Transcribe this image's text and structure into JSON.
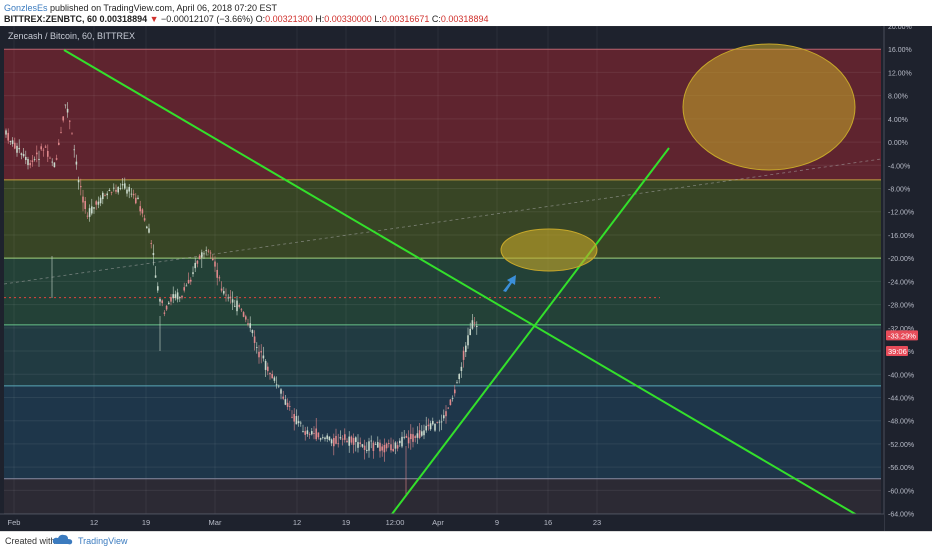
{
  "header": {
    "user": "GonzlesEs",
    "published": " published on TradingView.com, April 06, 2018 07:20 EST",
    "symbol": "BITTREX:ZENBTC, 60",
    "last_price": "0.00318894",
    "change_marker": "▼",
    "change": "−0.00012107 (−3.66%)",
    "ohlc": {
      "o_label": "O:",
      "o": "0.00321300",
      "h_label": "H:",
      "h": "0.00330000",
      "l_label": "L:",
      "l": "0.00316671",
      "c_label": "C:",
      "c": "0.00318894"
    }
  },
  "footer": {
    "created_with": "Created with",
    "brand": "TradingView"
  },
  "colors": {
    "background": "#1e222d",
    "zone_top": "#6b2430",
    "zone_mid_upper": "#3d4b25",
    "zone_mid": "#25463a",
    "zone_mid_lower": "#224046",
    "zone_low": "#1f3a50",
    "zone_bottom": "#2f2b36",
    "trendline": "#33e02b",
    "ellipse": "#c7a82a",
    "candle_up": "#c9d9cc",
    "candle_down": "#e0888c",
    "arrow": "#3b8fd9",
    "price_tag": "#e74c5a"
  },
  "chart_data": {
    "type": "candlestick",
    "title": "Zencash / Bitcoin, 60, BITTREX",
    "x_tick_labels": [
      "Feb",
      "12",
      "19",
      "Mar",
      "12",
      "19",
      "12:00",
      "Apr",
      "9",
      "16",
      "23"
    ],
    "y_axis": {
      "unit": "%",
      "range": [
        -67,
        20
      ],
      "tick_labels": [
        "20.00%",
        "16.00%",
        "12.00%",
        "8.00%",
        "4.00%",
        "0.00%",
        "-4.00%",
        "-8.00%",
        "-12.00%",
        "-16.00%",
        "-20.00%",
        "-24.00%",
        "-28.00%",
        "-32.00%",
        "-36.00%",
        "-40.00%",
        "-44.00%",
        "-48.00%",
        "-52.00%",
        "-56.00%",
        "-60.00%",
        "-64.00%"
      ],
      "tick_values": [
        20,
        16,
        12,
        8,
        4,
        0,
        -4,
        -8,
        -12,
        -16,
        -20,
        -24,
        -28,
        -32,
        -36,
        -40,
        -44,
        -48,
        -52,
        -56,
        -60,
        -64
      ]
    },
    "price_labels": [
      {
        "text": "-33.29%",
        "value": -33.29
      },
      {
        "text": "39:06",
        "value": -36
      }
    ],
    "horizontal_levels": [
      16,
      -6.5,
      -20,
      -31.5,
      -42,
      -58
    ],
    "dotted_level": -26.8,
    "trendlines": [
      {
        "name": "descending",
        "from": {
          "x": "Feb 7",
          "y": 15.5
        },
        "to": {
          "x": "Apr 28",
          "y": -68
        }
      },
      {
        "name": "ascending",
        "from": {
          "x": "Mar 31",
          "y": -68
        },
        "to": {
          "x": "Apr 22",
          "y": -1
        }
      }
    ],
    "grid": true,
    "legend": "none"
  }
}
